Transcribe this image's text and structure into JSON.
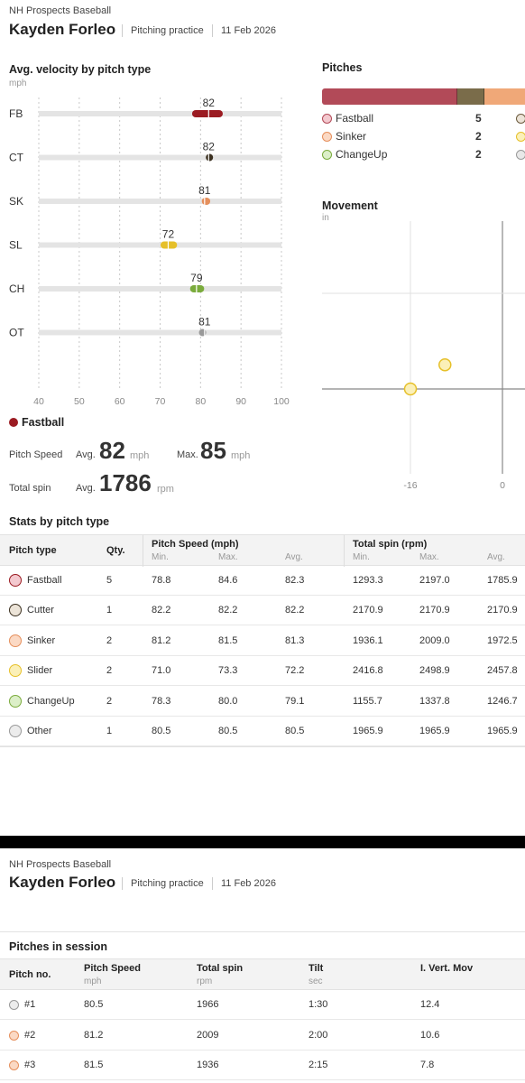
{
  "header": {
    "org": "NH Prospects Baseball",
    "player": "Kayden Forleo",
    "session": "Pitching practice",
    "date": "11 Feb 2026"
  },
  "velocity": {
    "title": "Avg. velocity by pitch type",
    "unit": "mph"
  },
  "chart_data": {
    "type": "scatter",
    "title": "Avg. velocity by pitch type",
    "ylabel": "mph",
    "categories": [
      "FB",
      "CT",
      "SK",
      "SL",
      "CH",
      "OT"
    ],
    "values": [
      82,
      82,
      81,
      72,
      79,
      81
    ],
    "ranges": [
      [
        78.8,
        84.6
      ],
      [
        82.2,
        82.2
      ],
      [
        81.2,
        81.5
      ],
      [
        71.0,
        73.3
      ],
      [
        78.3,
        80.0
      ],
      [
        80.5,
        80.5
      ]
    ],
    "colors": [
      "#9b1b22",
      "#3b3020",
      "#e58f5c",
      "#e6c02a",
      "#7aab3c",
      "#999999"
    ],
    "xlim": [
      40,
      100
    ],
    "xticks": [
      "40",
      "50",
      "60",
      "70",
      "80",
      "90",
      "100"
    ],
    "grid": true
  },
  "selected": {
    "name": "Fastball",
    "color": "#9b1b22",
    "speed_label": "Pitch Speed",
    "avg_label": "Avg.",
    "max_label": "Max.",
    "speed_avg": "82",
    "speed_max": "85",
    "speed_unit": "mph",
    "spin_label": "Total spin",
    "spin_avg": "1786",
    "spin_unit": "rpm"
  },
  "pitches": {
    "title": "Pitches",
    "segments": [
      {
        "count": 5,
        "color": "#b24a58"
      },
      {
        "count": 1,
        "color": "#7a6c4a"
      },
      {
        "count": 2,
        "color": "#f0a878"
      }
    ],
    "legend": [
      {
        "name": "Fastball",
        "count": "5",
        "fill": "#f3c9cf",
        "border": "#b24a58",
        "fill2": "#ece4d8",
        "border2": "#6b5a3e"
      },
      {
        "name": "Sinker",
        "count": "2",
        "fill": "#fbd9c4",
        "border": "#e58f5c",
        "fill2": "#fbf0b8",
        "border2": "#e6c02a"
      },
      {
        "name": "ChangeUp",
        "count": "2",
        "fill": "#dcefc8",
        "border": "#7aab3c",
        "fill2": "#e8e8e8",
        "border2": "#999999"
      }
    ]
  },
  "movement": {
    "title": "Movement",
    "unit": "in",
    "xticks": [
      "-16",
      "0"
    ],
    "points": [
      {
        "x": -16,
        "y": 0,
        "color": "#e6c02a",
        "fill": "#fbf0b8"
      },
      {
        "x": -10,
        "y": 4.2,
        "color": "#e6c02a",
        "fill": "#fbf0b8"
      }
    ]
  },
  "stats": {
    "title": "Stats by pitch type",
    "headers": {
      "type": "Pitch type",
      "qty": "Qty.",
      "speed": "Pitch Speed (mph)",
      "spin": "Total spin (rpm)",
      "min": "Min.",
      "max": "Max.",
      "avg": "Avg."
    },
    "rows": [
      {
        "name": "Fastball",
        "fill": "#f3c9cf",
        "border": "#9b1b22",
        "qty": "5",
        "smin": "78.8",
        "smax": "84.6",
        "savg": "82.3",
        "rmin": "1293.3",
        "rmax": "2197.0",
        "ravg": "1785.9"
      },
      {
        "name": "Cutter",
        "fill": "#ece4d8",
        "border": "#3b3020",
        "qty": "1",
        "smin": "82.2",
        "smax": "82.2",
        "savg": "82.2",
        "rmin": "2170.9",
        "rmax": "2170.9",
        "ravg": "2170.9"
      },
      {
        "name": "Sinker",
        "fill": "#fbd9c4",
        "border": "#e58f5c",
        "qty": "2",
        "smin": "81.2",
        "smax": "81.5",
        "savg": "81.3",
        "rmin": "1936.1",
        "rmax": "2009.0",
        "ravg": "1972.5"
      },
      {
        "name": "Slider",
        "fill": "#fbf0b8",
        "border": "#e6c02a",
        "qty": "2",
        "smin": "71.0",
        "smax": "73.3",
        "savg": "72.2",
        "rmin": "2416.8",
        "rmax": "2498.9",
        "ravg": "2457.8"
      },
      {
        "name": "ChangeUp",
        "fill": "#dcefc8",
        "border": "#7aab3c",
        "qty": "2",
        "smin": "78.3",
        "smax": "80.0",
        "savg": "79.1",
        "rmin": "1155.7",
        "rmax": "1337.8",
        "ravg": "1246.7"
      },
      {
        "name": "Other",
        "fill": "#ececec",
        "border": "#999999",
        "qty": "1",
        "smin": "80.5",
        "smax": "80.5",
        "savg": "80.5",
        "rmin": "1965.9",
        "rmax": "1965.9",
        "ravg": "1965.9"
      }
    ]
  },
  "session": {
    "title": "Pitches in session",
    "headers": {
      "no": "Pitch no.",
      "speed": "Pitch Speed",
      "speed_unit": "mph",
      "spin": "Total spin",
      "spin_unit": "rpm",
      "tilt": "Tilt",
      "tilt_unit": "sec",
      "ivb": "I. Vert. Mov"
    },
    "rows": [
      {
        "no": "#1",
        "fill": "#ececec",
        "border": "#999999",
        "speed": "80.5",
        "spin": "1966",
        "tilt": "1:30",
        "ivb": "12.4"
      },
      {
        "no": "#2",
        "fill": "#fbd9c4",
        "border": "#e58f5c",
        "speed": "81.2",
        "spin": "2009",
        "tilt": "2:00",
        "ivb": "10.6"
      },
      {
        "no": "#3",
        "fill": "#fbd9c4",
        "border": "#e58f5c",
        "speed": "81.5",
        "spin": "1936",
        "tilt": "2:15",
        "ivb": "7.8"
      }
    ]
  }
}
